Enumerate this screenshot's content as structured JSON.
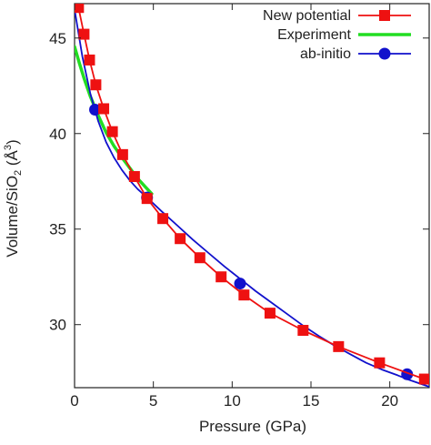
{
  "chart_data": {
    "type": "line",
    "title": "",
    "xlabel": "Pressure (GPa)",
    "ylabel_parts": {
      "prefix": "Volume/SiO",
      "sub": "2",
      "mid": " (Å",
      "sup": "3",
      "suffix": ")"
    },
    "xlim": [
      0,
      22.5
    ],
    "ylim": [
      26.7,
      46.8
    ],
    "xticks": [
      0,
      5,
      10,
      15,
      20
    ],
    "yticks": [
      30,
      35,
      40,
      45
    ],
    "grid": false,
    "legend_position": "top-right",
    "series": [
      {
        "name": "New potential",
        "color": "#ee1111",
        "marker": "square",
        "line": true,
        "x": [
          0.25,
          0.6,
          0.95,
          1.35,
          1.85,
          2.4,
          3.05,
          3.8,
          4.6,
          5.6,
          6.7,
          7.95,
          9.3,
          10.75,
          12.4,
          14.5,
          16.75,
          19.35,
          22.2
        ],
        "y": [
          46.6,
          45.2,
          43.85,
          42.55,
          41.3,
          40.1,
          38.9,
          37.75,
          36.6,
          35.55,
          34.5,
          33.5,
          32.5,
          31.55,
          30.6,
          29.7,
          28.85,
          28.0,
          27.15
        ]
      },
      {
        "name": "Experiment",
        "color": "#22dd22",
        "marker": "none",
        "line": true,
        "x": [
          0,
          0.3,
          0.6,
          1.0,
          1.5,
          2.0,
          2.5,
          3.0,
          3.5,
          4.0,
          4.5,
          4.9
        ],
        "y": [
          44.55,
          43.7,
          42.9,
          41.95,
          40.95,
          40.05,
          39.35,
          38.75,
          38.2,
          37.65,
          37.2,
          36.85
        ]
      },
      {
        "name": "ab-initio",
        "color": "#1111cc",
        "marker": "circle",
        "line": true,
        "curve": {
          "x": [
            0,
            0.5,
            1.0,
            1.5,
            2.0,
            2.5,
            3.0,
            3.5,
            4.0,
            4.6,
            5.5,
            6.5,
            7.5,
            8.5,
            9.5,
            10.5,
            11.5,
            12.5,
            13.5,
            14.5,
            15.5,
            16.5,
            17.5,
            18.5,
            19.5,
            20.5,
            21.1,
            22.5
          ],
          "y": [
            46.5,
            44.0,
            42.1,
            40.65,
            39.55,
            38.75,
            38.1,
            37.55,
            37.1,
            36.65,
            35.95,
            35.2,
            34.45,
            33.75,
            33.05,
            32.4,
            31.75,
            31.15,
            30.55,
            29.95,
            29.4,
            28.9,
            28.45,
            28.0,
            27.65,
            27.35,
            27.15,
            26.75
          ]
        },
        "x": [
          1.3,
          4.6,
          10.5,
          21.1
        ],
        "y": [
          41.25,
          36.65,
          32.15,
          27.4
        ]
      }
    ]
  }
}
